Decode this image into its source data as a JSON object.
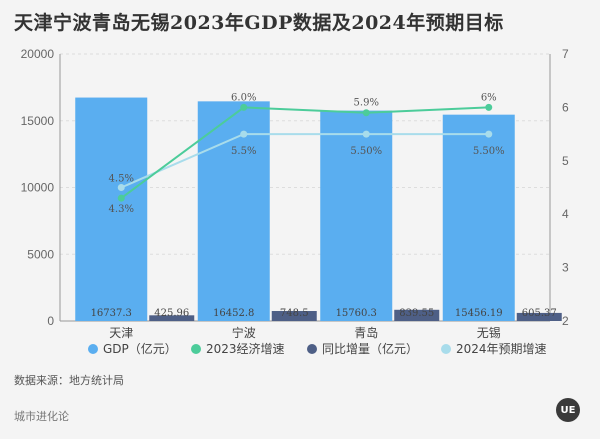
{
  "page": {
    "title": "天津宁波青岛无锡2023年GDP数据及2024年预期目标"
  },
  "footer": {
    "source": "数据来源：地方统计局",
    "brand": "城市进化论",
    "logo_text": "UE"
  },
  "colors": {
    "gdp": "#5aaef0",
    "increase": "#4e5f86",
    "growth2023": "#4ccc9a",
    "target2024": "#a8dceb",
    "grid": "#dddddd"
  },
  "chart_data": {
    "type": "bar",
    "categories": [
      "天津",
      "宁波",
      "青岛",
      "无锡"
    ],
    "series": [
      {
        "name": "GDP（亿元）",
        "kind": "bar",
        "axis": "left",
        "values": [
          16737.3,
          16452.8,
          15760.3,
          15456.19
        ],
        "labels": [
          "16737.3",
          "16452.8",
          "15760.3",
          "15456.19"
        ]
      },
      {
        "name": "同比增量（亿元）",
        "kind": "bar",
        "axis": "left",
        "values": [
          425.96,
          748.5,
          839.55,
          605.37
        ],
        "labels": [
          "425.96",
          "748.5",
          "839.55",
          "605.37"
        ]
      },
      {
        "name": "2023经济增速",
        "kind": "line",
        "axis": "right",
        "values": [
          4.3,
          6.0,
          5.9,
          6.0
        ],
        "labels": [
          "4.3%",
          "6.0%",
          "5.9%",
          "6%"
        ]
      },
      {
        "name": "2024年预期增速",
        "kind": "line",
        "axis": "right",
        "values": [
          4.5,
          5.5,
          5.5,
          5.5
        ],
        "labels": [
          "4.5%",
          "5.5%",
          "5.50%",
          "5.50%"
        ]
      }
    ],
    "legend_order": [
      0,
      2,
      1,
      3
    ],
    "yleft": {
      "min": 0,
      "max": 20000,
      "ticks": [
        0,
        5000,
        10000,
        15000,
        20000
      ]
    },
    "yright": {
      "min": 2,
      "max": 7,
      "ticks": [
        2,
        3,
        4,
        5,
        6,
        7
      ]
    },
    "legend_position": "bottom",
    "grid": true
  }
}
